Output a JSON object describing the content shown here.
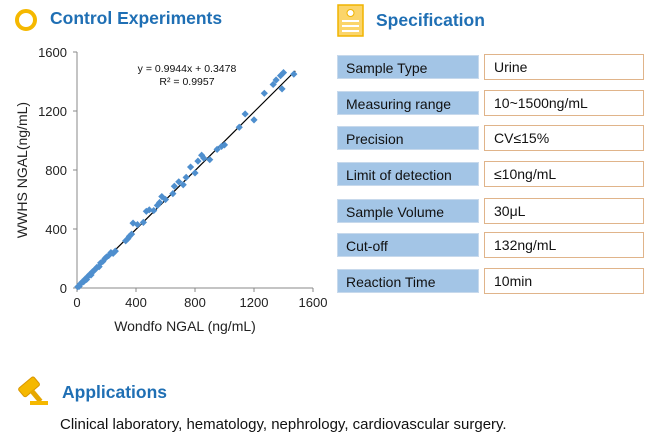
{
  "control_experiments": {
    "title": "Control Experiments"
  },
  "specification": {
    "title": "Specification",
    "rows": [
      {
        "label": "Sample  Type",
        "value": "Urine"
      },
      {
        "label": "Measuring range",
        "value": "10~1500ng/mL"
      },
      {
        "label": "Precision",
        "value": "CV≤15%"
      },
      {
        "label": "Limit of detection",
        "value": "≤10ng/mL"
      },
      {
        "label": "Sample  Volume",
        "value": "30μL"
      },
      {
        "label": "Cut-off",
        "value": "132ng/mL"
      },
      {
        "label": "Reaction Time",
        "value": "10min"
      }
    ]
  },
  "applications": {
    "title": "Applications",
    "text": "Clinical laboratory, hematology, nephrology, cardiovascular surgery."
  },
  "icons": [
    "circle-bullet-icon",
    "document-icon",
    "gavel-icon"
  ],
  "colors": {
    "heading": "#1f6fb4",
    "points": "#4f8fce",
    "spec_label_bg": "#a3c5e6",
    "accent": "#f5b800"
  },
  "chart_data": {
    "type": "scatter",
    "xlabel": "Wondfo NGAL  (ng/mL)",
    "ylabel": "WWHS NGAL(ng/mL)",
    "xlim": [
      0,
      1600
    ],
    "ylim": [
      0,
      1600
    ],
    "xticks": [
      0,
      400,
      800,
      1200,
      1600
    ],
    "yticks": [
      0,
      400,
      800,
      1200,
      1600
    ],
    "equation": "y = 0.9944x + 0.3478",
    "r2": "R² = 0.9957",
    "trendline": {
      "slope": 0.9944,
      "intercept": 0.3478
    },
    "points": [
      [
        5,
        8
      ],
      [
        15,
        12
      ],
      [
        25,
        30
      ],
      [
        35,
        40
      ],
      [
        45,
        42
      ],
      [
        55,
        60
      ],
      [
        65,
        58
      ],
      [
        75,
        80
      ],
      [
        85,
        90
      ],
      [
        95,
        88
      ],
      [
        105,
        110
      ],
      [
        115,
        118
      ],
      [
        125,
        128
      ],
      [
        135,
        140
      ],
      [
        150,
        145
      ],
      [
        160,
        170
      ],
      [
        175,
        180
      ],
      [
        190,
        200
      ],
      [
        200,
        210
      ],
      [
        215,
        220
      ],
      [
        230,
        240
      ],
      [
        245,
        235
      ],
      [
        260,
        250
      ],
      [
        330,
        320
      ],
      [
        345,
        335
      ],
      [
        355,
        350
      ],
      [
        370,
        365
      ],
      [
        380,
        440
      ],
      [
        410,
        430
      ],
      [
        450,
        445
      ],
      [
        470,
        520
      ],
      [
        490,
        530
      ],
      [
        520,
        525
      ],
      [
        545,
        560
      ],
      [
        560,
        580
      ],
      [
        575,
        620
      ],
      [
        600,
        600
      ],
      [
        650,
        640
      ],
      [
        660,
        690
      ],
      [
        690,
        720
      ],
      [
        720,
        700
      ],
      [
        740,
        750
      ],
      [
        770,
        820
      ],
      [
        800,
        780
      ],
      [
        820,
        860
      ],
      [
        845,
        900
      ],
      [
        860,
        880
      ],
      [
        900,
        870
      ],
      [
        950,
        940
      ],
      [
        980,
        960
      ],
      [
        1000,
        970
      ],
      [
        1100,
        1090
      ],
      [
        1140,
        1180
      ],
      [
        1200,
        1140
      ],
      [
        1270,
        1320
      ],
      [
        1330,
        1380
      ],
      [
        1350,
        1410
      ],
      [
        1380,
        1440
      ],
      [
        1390,
        1350
      ],
      [
        1400,
        1460
      ],
      [
        1470,
        1450
      ]
    ]
  }
}
